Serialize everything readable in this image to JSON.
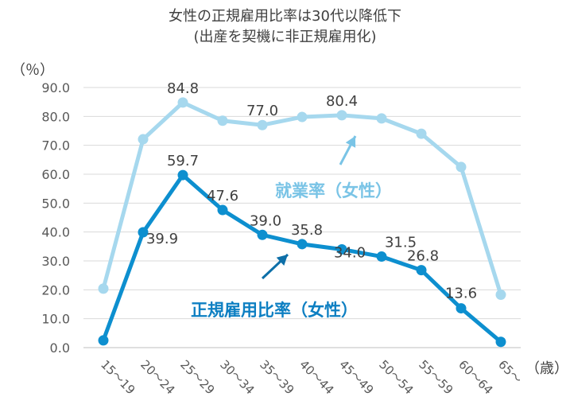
{
  "chart_data": {
    "type": "line",
    "title": "女性の正規雇用比率は30代以降低下",
    "subtitle": "(出産を契機に非正規雇用化)",
    "ylabel": "（％）",
    "xlabel": "（歳）",
    "ylim": [
      0,
      90
    ],
    "yticks": [
      "0.0",
      "10.0",
      "20.0",
      "30.0",
      "40.0",
      "50.0",
      "60.0",
      "70.0",
      "80.0",
      "90.0"
    ],
    "categories": [
      "15～19",
      "20～24",
      "25～29",
      "30～34",
      "35～39",
      "40～44",
      "45～49",
      "50～54",
      "55～59",
      "60～64",
      "65～"
    ],
    "grid": true,
    "legend": "inline",
    "series": [
      {
        "name": "就業率（女性）",
        "color": "#a6d8ee",
        "values": [
          20.4,
          72.1,
          84.8,
          78.5,
          77.0,
          79.8,
          80.4,
          79.3,
          74.0,
          62.5,
          18.3
        ],
        "labels": [
          "",
          "",
          "84.8",
          "",
          "77.0",
          "",
          "80.4",
          "",
          "",
          "",
          ""
        ]
      },
      {
        "name": "正規雇用比率（女性）",
        "color": "#0d8fcf",
        "values": [
          2.5,
          39.9,
          59.7,
          47.6,
          39.0,
          35.8,
          34.0,
          31.5,
          26.8,
          13.6,
          2.0
        ],
        "labels": [
          "",
          "39.9",
          "59.7",
          "47.6",
          "39.0",
          "35.8",
          "34.0",
          "31.5",
          "26.8",
          "13.6",
          ""
        ]
      }
    ]
  }
}
